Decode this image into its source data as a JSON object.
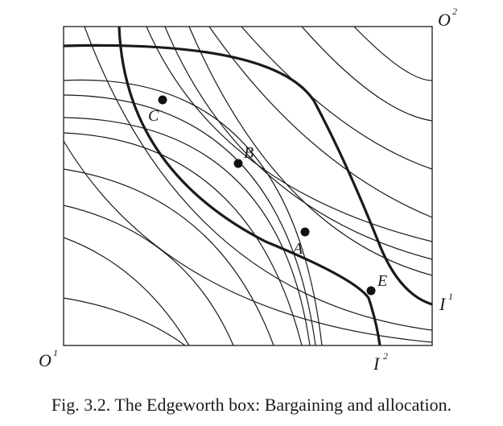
{
  "origins": {
    "o1": {
      "base": "O",
      "sup": "1"
    },
    "o2": {
      "base": "O",
      "sup": "2"
    }
  },
  "curve_labels": {
    "i1": {
      "base": "I",
      "sup": "1"
    },
    "i2": {
      "base": "I",
      "sup": "2"
    }
  },
  "points": [
    {
      "id": "C",
      "label": "C"
    },
    {
      "id": "B",
      "label": "B"
    },
    {
      "id": "A",
      "label": "A"
    },
    {
      "id": "E",
      "label": "E"
    }
  ],
  "caption": "Fig. 3.2.  The Edgeworth box: Bargaining and allocation."
}
